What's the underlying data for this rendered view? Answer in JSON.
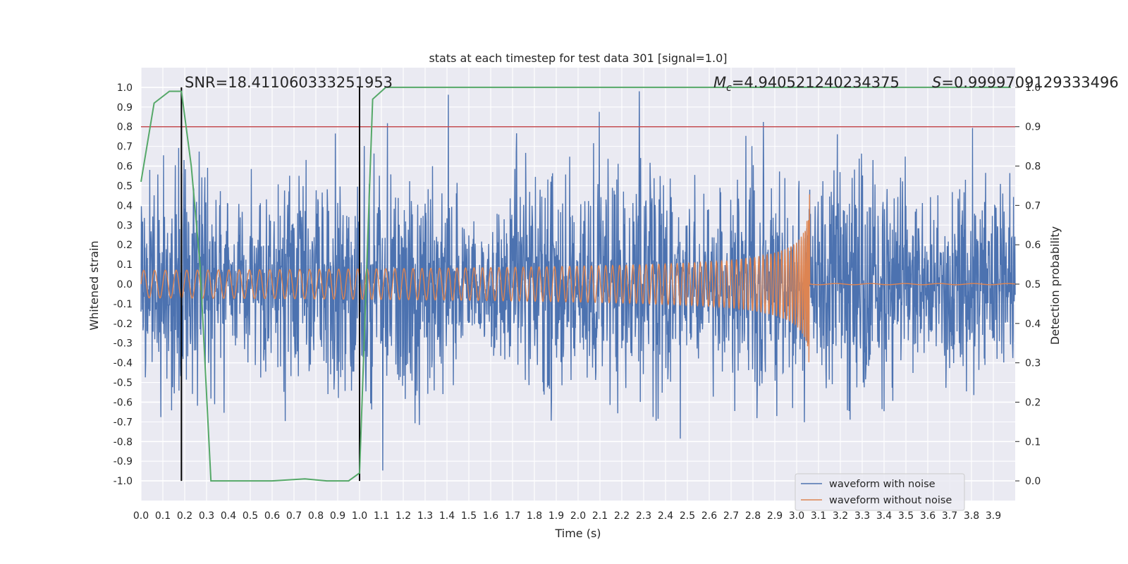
{
  "chart_data": {
    "type": "line",
    "title": "stats at each timestep for test data 301 [signal=1.0]",
    "xlabel": "Time (s)",
    "ylabel_left": "Whitened strain",
    "ylabel_right": "Detection probability",
    "xlim": [
      0.0,
      4.0
    ],
    "ylim_left": [
      -1.1,
      1.1
    ],
    "ylim_right": [
      -0.05,
      1.05
    ],
    "x_ticks": [
      "0.0",
      "0.1",
      "0.2",
      "0.3",
      "0.4",
      "0.5",
      "0.6",
      "0.7",
      "0.8",
      "0.9",
      "1.0",
      "1.1",
      "1.2",
      "1.3",
      "1.4",
      "1.5",
      "1.6",
      "1.7",
      "1.8",
      "1.9",
      "2.0",
      "2.1",
      "2.2",
      "2.3",
      "2.4",
      "2.5",
      "2.6",
      "2.7",
      "2.8",
      "2.9",
      "3.0",
      "3.1",
      "3.2",
      "3.3",
      "3.4",
      "3.5",
      "3.6",
      "3.7",
      "3.8",
      "3.9"
    ],
    "y_ticks_left": [
      "1.0",
      "0.9",
      "0.8",
      "0.7",
      "0.6",
      "0.5",
      "0.4",
      "0.3",
      "0.2",
      "0.1",
      "0.0",
      "-0.1",
      "-0.2",
      "-0.3",
      "-0.4",
      "-0.5",
      "-0.6",
      "-0.7",
      "-0.8",
      "-0.9",
      "-1.0"
    ],
    "y_ticks_right": [
      "1.0",
      "0.9",
      "0.8",
      "0.7",
      "0.6",
      "0.5",
      "0.4",
      "0.3",
      "0.2",
      "0.1",
      "0.0"
    ],
    "annotations": {
      "snr": "SNR=18.411060333251953",
      "mc_symbol": "M",
      "mc_sub": "c",
      "mc_value": "=4.940521240234375",
      "s_symbol": "S",
      "s_value": "=0.9999709129333496"
    },
    "threshold": 0.9,
    "vlines": [
      0.185,
      1.0
    ],
    "series": [
      {
        "name": "waveform with noise",
        "color": "#4c72b0",
        "axis": "left",
        "noise_amplitude": 0.35,
        "noise_extremes": [
          -0.98,
          0.98
        ]
      },
      {
        "name": "waveform without noise",
        "color": "#dd8452",
        "axis": "left",
        "chirp_start_amplitude": 0.07,
        "chirp_peak_amplitude": 0.47,
        "merger_time": 3.06
      },
      {
        "name": "detection probability",
        "color": "#55a868",
        "axis": "right",
        "x": [
          0.0,
          0.06,
          0.13,
          0.185,
          0.23,
          0.27,
          0.32,
          0.37,
          0.45,
          0.6,
          0.75,
          0.85,
          0.95,
          1.0,
          1.06,
          1.12,
          1.2,
          1.5,
          2.0,
          2.5,
          3.0,
          3.5,
          3.98
        ],
        "y": [
          0.76,
          0.96,
          0.99,
          0.99,
          0.8,
          0.55,
          0.0,
          0.0,
          0.0,
          0.0,
          0.005,
          0.0,
          0.0,
          0.02,
          0.97,
          1.0,
          1.0,
          1.0,
          1.0,
          1.0,
          1.0,
          1.0,
          1.0
        ]
      }
    ],
    "legend": [
      "waveform with noise",
      "waveform without noise"
    ],
    "legend_position": "lower-right",
    "colors": {
      "background": "#eaeaf2",
      "grid": "#ffffff",
      "threshold": "#c44e52",
      "vline": "#000000"
    }
  }
}
